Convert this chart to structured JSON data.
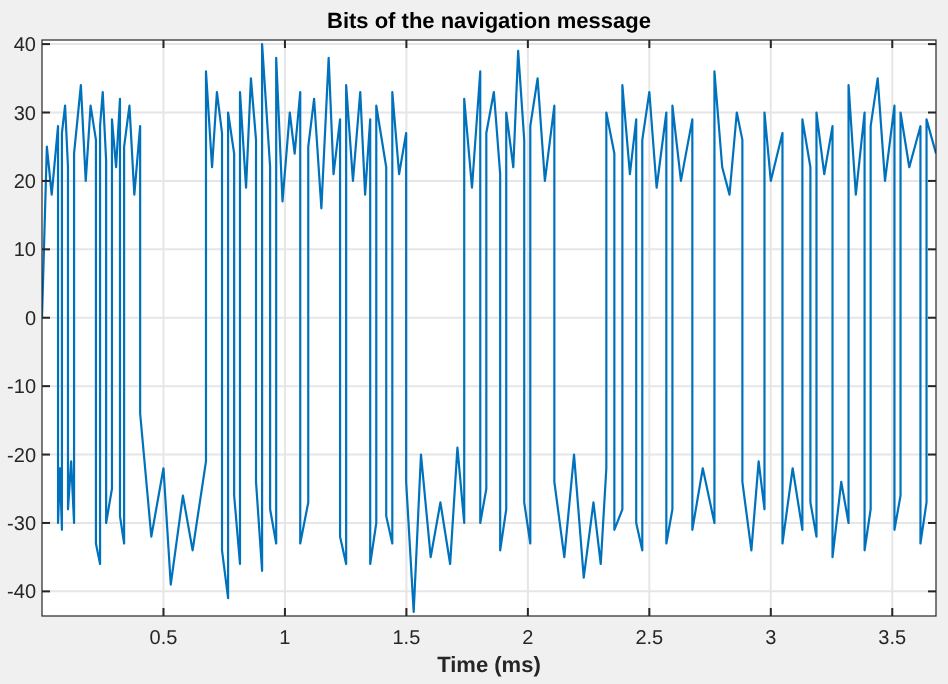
{
  "chart_data": {
    "type": "line",
    "title": "Bits of the navigation message",
    "xlabel": "Time (ms)",
    "xlim": [
      0,
      3.68
    ],
    "xticks": [
      0.5,
      1,
      1.5,
      2,
      2.5,
      3,
      3.5
    ],
    "ylim": [
      -43.6,
      40.6
    ],
    "yticks": [
      -40,
      -30,
      -20,
      -10,
      0,
      10,
      20,
      30,
      40
    ],
    "grid": true,
    "series": [
      {
        "color": "#0072bd",
        "x": [
          0,
          0.02,
          0.04,
          0.066,
          0.066,
          0.074,
          0.082,
          0.082,
          0.095,
          0.107,
          0.107,
          0.12,
          0.132,
          0.132,
          0.16,
          0.18,
          0.2,
          0.222,
          0.222,
          0.239,
          0.239,
          0.25,
          0.264,
          0.264,
          0.288,
          0.288,
          0.305,
          0.321,
          0.321,
          0.338,
          0.338,
          0.36,
          0.38,
          0.404,
          0.404,
          0.45,
          0.5,
          0.53,
          0.58,
          0.62,
          0.675,
          0.675,
          0.7,
          0.72,
          0.741,
          0.741,
          0.766,
          0.766,
          0.791,
          0.791,
          0.815,
          0.815,
          0.84,
          0.86,
          0.881,
          0.881,
          0.906,
          0.906,
          0.939,
          0.939,
          0.964,
          0.964,
          0.99,
          1.02,
          1.04,
          1.063,
          1.063,
          1.096,
          1.096,
          1.12,
          1.15,
          1.18,
          1.2,
          1.227,
          1.227,
          1.252,
          1.252,
          1.28,
          1.31,
          1.33,
          1.351,
          1.351,
          1.376,
          1.376,
          1.417,
          1.417,
          1.442,
          1.442,
          1.47,
          1.499,
          1.499,
          1.53,
          1.56,
          1.6,
          1.64,
          1.68,
          1.71,
          1.738,
          1.738,
          1.77,
          1.804,
          1.804,
          1.829,
          1.829,
          1.86,
          1.886,
          1.886,
          1.911,
          1.911,
          1.94,
          1.96,
          1.985,
          1.985,
          2.01,
          2.01,
          2.04,
          2.07,
          2.109,
          2.109,
          2.15,
          2.19,
          2.23,
          2.27,
          2.3,
          2.323,
          2.323,
          2.356,
          2.356,
          2.389,
          2.389,
          2.42,
          2.446,
          2.446,
          2.471,
          2.471,
          2.5,
          2.53,
          2.57,
          2.57,
          2.595,
          2.595,
          2.63,
          2.677,
          2.677,
          2.72,
          2.768,
          2.768,
          2.8,
          2.83,
          2.86,
          2.883,
          2.883,
          2.92,
          2.95,
          2.974,
          2.974,
          3.0,
          3.048,
          3.048,
          3.09,
          3.13,
          3.13,
          3.163,
          3.163,
          3.188,
          3.188,
          3.22,
          3.254,
          3.254,
          3.29,
          3.32,
          3.32,
          3.35,
          3.386,
          3.386,
          3.411,
          3.411,
          3.44,
          3.47,
          3.509,
          3.509,
          3.534,
          3.534,
          3.57,
          3.616,
          3.616,
          3.641,
          3.641,
          3.68
        ],
        "values": [
          0,
          25,
          18,
          28,
          -30,
          -22,
          -31,
          27,
          31,
          22,
          -28,
          -21,
          -30,
          24,
          34,
          20,
          31,
          26,
          -33,
          -36,
          28,
          33,
          23,
          -30,
          -25,
          29,
          22,
          32,
          -29,
          -33,
          25,
          31,
          18,
          28,
          -14,
          -32,
          -22,
          -39,
          -26,
          -34,
          -21,
          36,
          22,
          33,
          27,
          -34,
          -41,
          30,
          24,
          -26,
          -36,
          33,
          19,
          35,
          26,
          -24,
          -37,
          40,
          22,
          -28,
          -33,
          38,
          17,
          30,
          24,
          33,
          -33,
          -27,
          25,
          32,
          16,
          38,
          21,
          29,
          -32,
          -36,
          34,
          20,
          33,
          18,
          29,
          -36,
          -30,
          31,
          22,
          -29,
          -33,
          33,
          21,
          27,
          -24,
          -43,
          -20,
          -35,
          -27,
          -36,
          -19,
          -30,
          32,
          19,
          36,
          -30,
          -25,
          27,
          33,
          21,
          -34,
          -28,
          30,
          22,
          39,
          26,
          -27,
          -33,
          28,
          35,
          20,
          31,
          -24,
          -35,
          -20,
          -38,
          -27,
          -36,
          -22,
          30,
          24,
          -31,
          -28,
          34,
          21,
          29,
          -30,
          -34,
          26,
          33,
          19,
          30,
          -33,
          -28,
          31,
          20,
          29,
          -31,
          -22,
          -30,
          36,
          22,
          18,
          30,
          26,
          -24,
          -34,
          -21,
          -28,
          30,
          20,
          27,
          -33,
          -22,
          -31,
          29,
          22,
          -27,
          -32,
          30,
          21,
          28,
          -35,
          -24,
          -30,
          34,
          18,
          30,
          -34,
          -28,
          28,
          35,
          20,
          31,
          -31,
          -26,
          30,
          22,
          28,
          -33,
          -27,
          29,
          24
        ]
      }
    ]
  }
}
